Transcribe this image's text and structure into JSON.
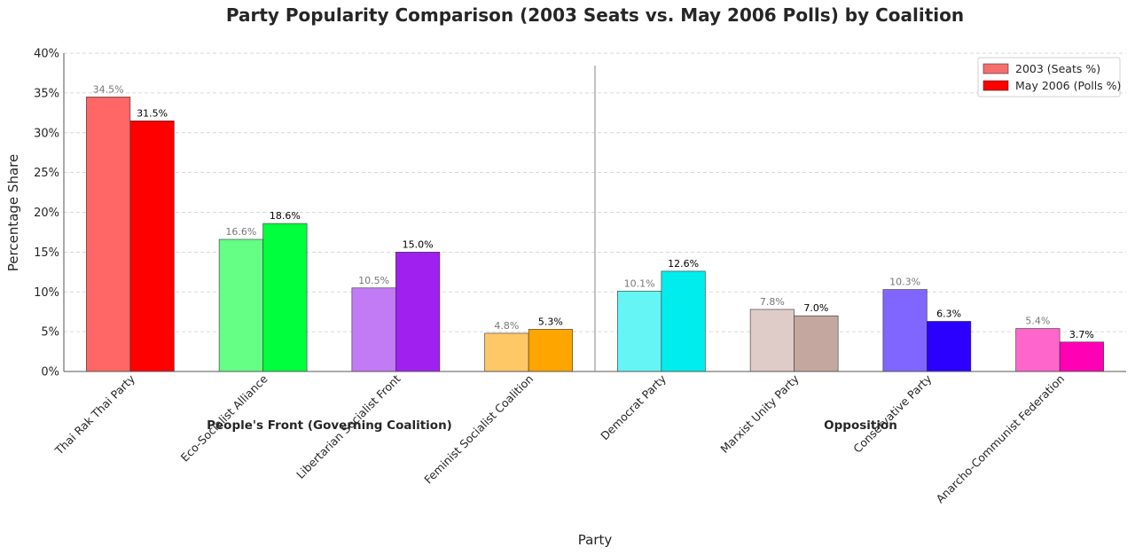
{
  "chart_data": {
    "type": "bar",
    "title": "Party Popularity Comparison (2003 Seats vs. May 2006 Polls) by Coalition",
    "xlabel": "Party",
    "ylabel": "Percentage Share",
    "ylim": [
      0,
      40
    ],
    "yticks": [
      "0%",
      "5%",
      "10%",
      "15%",
      "20%",
      "25%",
      "30%",
      "35%",
      "40%"
    ],
    "grid": "y",
    "legend_position": "top-right",
    "categories": [
      "Thai Rak Thai Party",
      "Eco-Socialist Alliance",
      "Libertarian Socialist Front",
      "Feminist Socialist Coalition",
      "Democrat Party",
      "Marxist Unity Party",
      "Conservative Party",
      "Anarcho-Communist Federation"
    ],
    "groups": [
      {
        "label": "People's Front (Governing Coalition)",
        "start": 0,
        "end": 3
      },
      {
        "label": "Opposition",
        "start": 4,
        "end": 7
      }
    ],
    "series": [
      {
        "name": "2003 (Seats %)",
        "values": [
          34.5,
          16.6,
          10.5,
          4.8,
          10.1,
          7.8,
          10.3,
          5.4
        ],
        "labels": [
          "34.5%",
          "16.6%",
          "10.5%",
          "4.8%",
          "10.1%",
          "7.8%",
          "10.3%",
          "5.4%"
        ],
        "colors": [
          "#ff6666",
          "#66ff85",
          "#c27af5",
          "#ffc866",
          "#66f5f5",
          "#dfccc8",
          "#8066ff",
          "#ff66cc"
        ],
        "legend_color": "#f76e6e"
      },
      {
        "name": "May 2006 (Polls %)",
        "values": [
          31.5,
          18.6,
          15.0,
          5.3,
          12.6,
          7.0,
          6.3,
          3.7
        ],
        "labels": [
          "31.5%",
          "18.6%",
          "15.0%",
          "5.3%",
          "12.6%",
          "7.0%",
          "6.3%",
          "3.7%"
        ],
        "colors": [
          "#ff0000",
          "#00ff3c",
          "#a020f0",
          "#ffa500",
          "#00eded",
          "#c4a8a0",
          "#2b00ff",
          "#ff00b4"
        ],
        "legend_color": "#ff0000"
      }
    ]
  }
}
